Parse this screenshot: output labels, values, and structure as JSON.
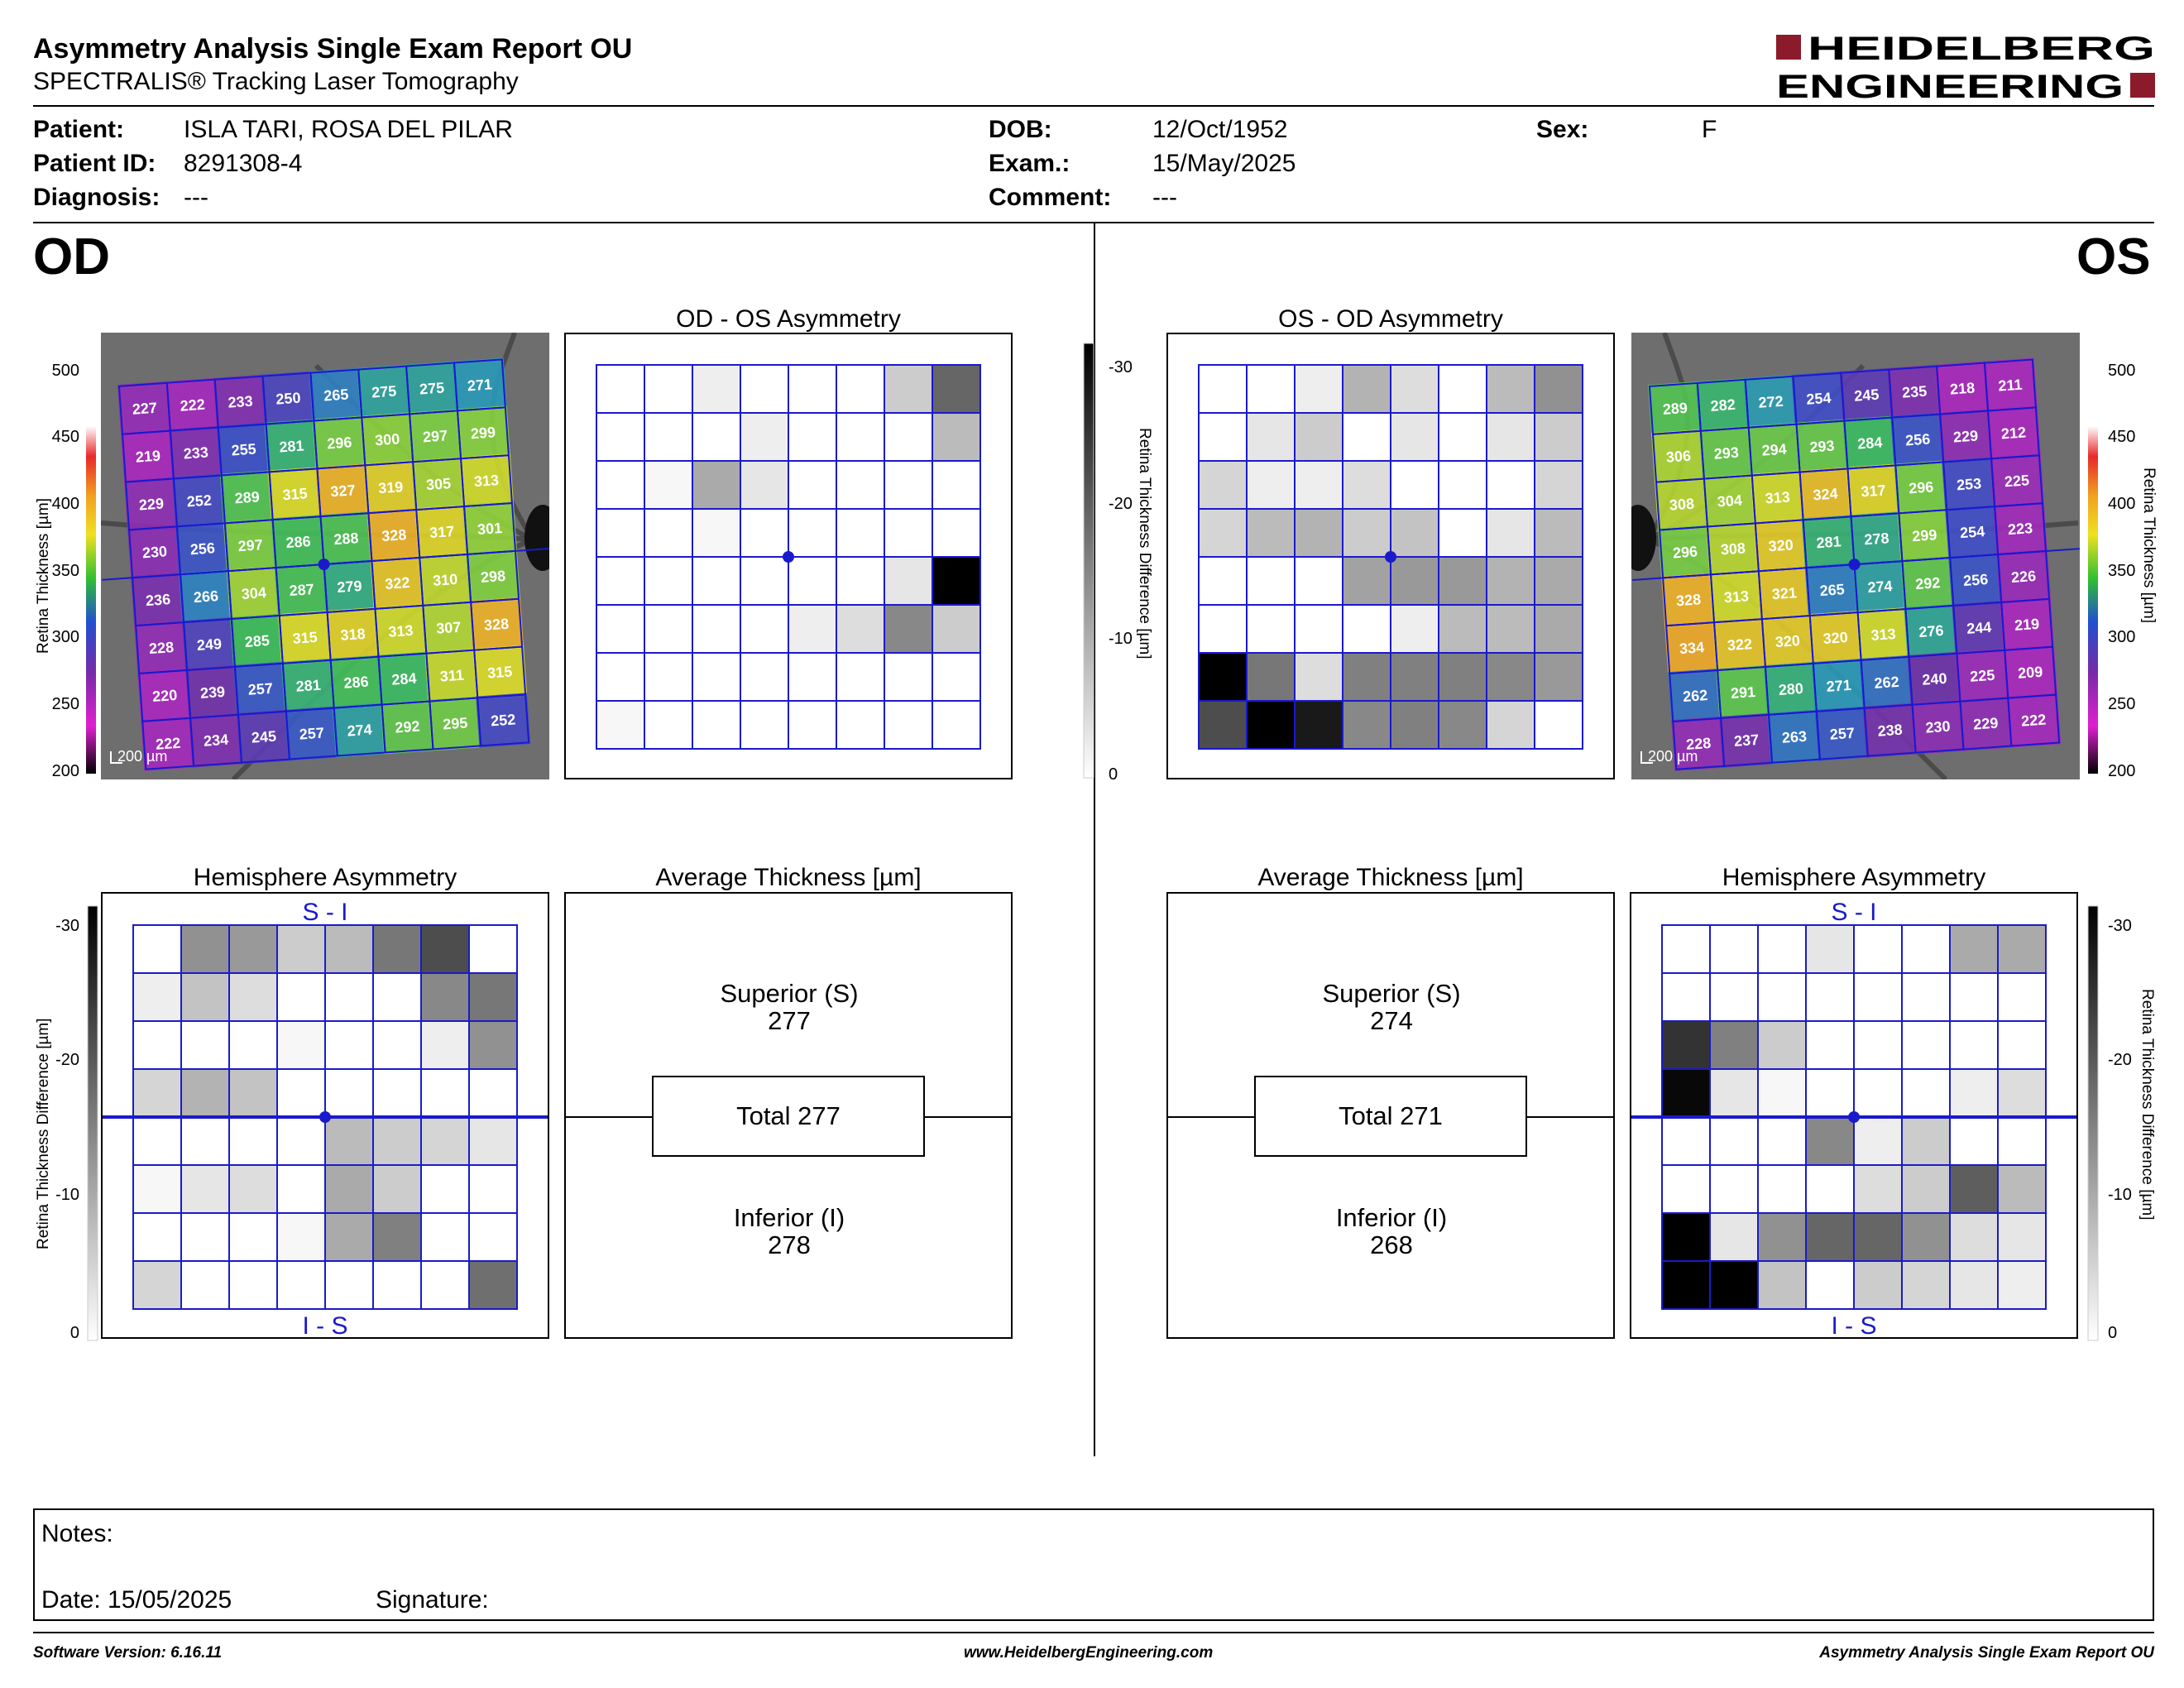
{
  "header": {
    "title": "Asymmetry Analysis Single Exam Report OU",
    "subtitle": "SPECTRALIS® Tracking Laser Tomography",
    "logo_line1": "HEIDELBERG",
    "logo_line2": "ENGINEERING",
    "brand_color": "#8b1a2b"
  },
  "patient": {
    "patient_label": "Patient:",
    "patient_value": "ISLA TARI, ROSA DEL PILAR",
    "id_label": "Patient ID:",
    "id_value": "8291308-4",
    "diagnosis_label": "Diagnosis:",
    "diagnosis_value": "---",
    "dob_label": "DOB:",
    "dob_value": "12/Oct/1952",
    "exam_label": "Exam.:",
    "exam_value": "15/May/2025",
    "comment_label": "Comment:",
    "comment_value": "---",
    "sex_label": "Sex:",
    "sex_value": "F"
  },
  "eyes": {
    "left_label": "OD",
    "right_label": "OS"
  },
  "panels": {
    "od_os_title": "OD - OS Asymmetry",
    "os_od_title": "OS - OD Asymmetry",
    "hemi_title": "Hemisphere Asymmetry",
    "avg_title": "Average Thickness [µm]",
    "si_label": "S - I",
    "is_label": "I - S",
    "scale_bar": "200 µm",
    "thickness_axis": "Retina  Thickness [µm]",
    "thickness_axis_os": "Retina  Thickness [µm]",
    "difference_axis": "Retina Thickness Difference [µm]"
  },
  "scales": {
    "thickness_ticks": [
      "500",
      "450",
      "400",
      "350",
      "300",
      "250",
      "200"
    ],
    "difference_ticks": [
      "-30",
      "-20",
      "-10",
      "0"
    ]
  },
  "od": {
    "thickness_grid": [
      [
        227,
        222,
        233,
        250,
        265,
        275,
        275,
        271
      ],
      [
        219,
        233,
        255,
        281,
        296,
        300,
        297,
        299
      ],
      [
        229,
        252,
        289,
        315,
        327,
        319,
        305,
        313
      ],
      [
        230,
        256,
        297,
        286,
        288,
        328,
        317,
        301
      ],
      [
        236,
        266,
        304,
        287,
        279,
        322,
        310,
        298
      ],
      [
        228,
        249,
        285,
        315,
        318,
        313,
        307,
        328
      ],
      [
        220,
        239,
        257,
        281,
        286,
        284,
        311,
        315
      ],
      [
        222,
        234,
        245,
        257,
        274,
        292,
        295,
        252
      ]
    ],
    "asymmetry_grid": [
      [
        0,
        0,
        2,
        0,
        0,
        0,
        6,
        18
      ],
      [
        0,
        0,
        0,
        2,
        0,
        0,
        0,
        8
      ],
      [
        0,
        1,
        10,
        3,
        0,
        0,
        0,
        0
      ],
      [
        0,
        0,
        1,
        0,
        0,
        0,
        0,
        0
      ],
      [
        0,
        0,
        0,
        0,
        0,
        0,
        3,
        30
      ],
      [
        0,
        0,
        0,
        0,
        2,
        4,
        14,
        6
      ],
      [
        0,
        0,
        0,
        0,
        0,
        0,
        0,
        0
      ],
      [
        1,
        0,
        0,
        0,
        0,
        0,
        0,
        0
      ]
    ],
    "hemisphere_grid": [
      [
        0,
        13,
        12,
        6,
        8,
        16,
        21,
        0
      ],
      [
        2,
        7,
        4,
        0,
        0,
        0,
        14,
        16
      ],
      [
        0,
        0,
        0,
        1,
        0,
        0,
        2,
        13
      ],
      [
        5,
        9,
        7,
        0,
        0,
        0,
        0,
        0
      ],
      [
        0,
        0,
        0,
        0,
        8,
        6,
        5,
        3
      ],
      [
        1,
        3,
        4,
        0,
        10,
        6,
        0,
        0
      ],
      [
        0,
        0,
        0,
        1,
        10,
        15,
        0,
        0
      ],
      [
        5,
        0,
        0,
        0,
        0,
        0,
        0,
        17
      ]
    ],
    "superior_label": "Superior (S)",
    "superior_value": "277",
    "total_label": "Total 277",
    "inferior_label": "Inferior (I)",
    "inferior_value": "278"
  },
  "os": {
    "thickness_grid": [
      [
        289,
        282,
        272,
        254,
        245,
        235,
        218,
        211
      ],
      [
        306,
        293,
        294,
        293,
        284,
        256,
        229,
        212
      ],
      [
        308,
        304,
        313,
        324,
        317,
        296,
        253,
        225
      ],
      [
        296,
        308,
        320,
        281,
        278,
        299,
        254,
        223
      ],
      [
        328,
        313,
        321,
        265,
        274,
        292,
        256,
        226
      ],
      [
        334,
        322,
        320,
        320,
        313,
        276,
        244,
        219
      ],
      [
        262,
        291,
        280,
        271,
        262,
        240,
        225,
        209
      ],
      [
        228,
        237,
        263,
        257,
        238,
        230,
        229,
        222
      ]
    ],
    "asymmetry_grid": [
      [
        0,
        0,
        2,
        9,
        4,
        0,
        8,
        13
      ],
      [
        0,
        3,
        6,
        0,
        3,
        0,
        3,
        6
      ],
      [
        5,
        2,
        2,
        4,
        0,
        0,
        0,
        5
      ],
      [
        5,
        8,
        9,
        6,
        7,
        0,
        3,
        8
      ],
      [
        0,
        0,
        0,
        11,
        12,
        12,
        9,
        10
      ],
      [
        0,
        0,
        0,
        0,
        2,
        8,
        8,
        10
      ],
      [
        30,
        16,
        4,
        15,
        15,
        15,
        14,
        12
      ],
      [
        21,
        30,
        27,
        14,
        15,
        14,
        5,
        0
      ]
    ],
    "hemisphere_grid": [
      [
        0,
        0,
        0,
        3,
        0,
        0,
        10,
        10
      ],
      [
        0,
        0,
        0,
        0,
        0,
        0,
        0,
        0
      ],
      [
        24,
        15,
        6,
        0,
        0,
        0,
        0,
        0
      ],
      [
        29,
        3,
        1,
        0,
        0,
        0,
        2,
        4
      ],
      [
        0,
        0,
        0,
        14,
        2,
        6,
        0,
        0
      ],
      [
        0,
        0,
        0,
        0,
        4,
        6,
        19,
        8
      ],
      [
        30,
        3,
        13,
        18,
        18,
        13,
        4,
        3
      ],
      [
        30,
        30,
        7,
        0,
        6,
        5,
        3,
        2
      ]
    ],
    "superior_label": "Superior (S)",
    "superior_value": "274",
    "total_label": "Total 271",
    "inferior_label": "Inferior (I)",
    "inferior_value": "268"
  },
  "notes": {
    "notes_label": "Notes:",
    "date_label": "Date: 15/05/2025",
    "signature_label": "Signature:"
  },
  "footer": {
    "software": "Software Version: 6.16.11",
    "website": "www.HeidelbergEngineering.com",
    "report": "Asymmetry Analysis Single Exam Report OU"
  },
  "colors": {
    "grid_blue": "#1a1acc",
    "scale_red": "#e8282a",
    "scale_yellow": "#f0e020",
    "scale_green": "#30c030",
    "scale_blue": "#2050d0",
    "scale_purple": "#7a2aa8"
  }
}
